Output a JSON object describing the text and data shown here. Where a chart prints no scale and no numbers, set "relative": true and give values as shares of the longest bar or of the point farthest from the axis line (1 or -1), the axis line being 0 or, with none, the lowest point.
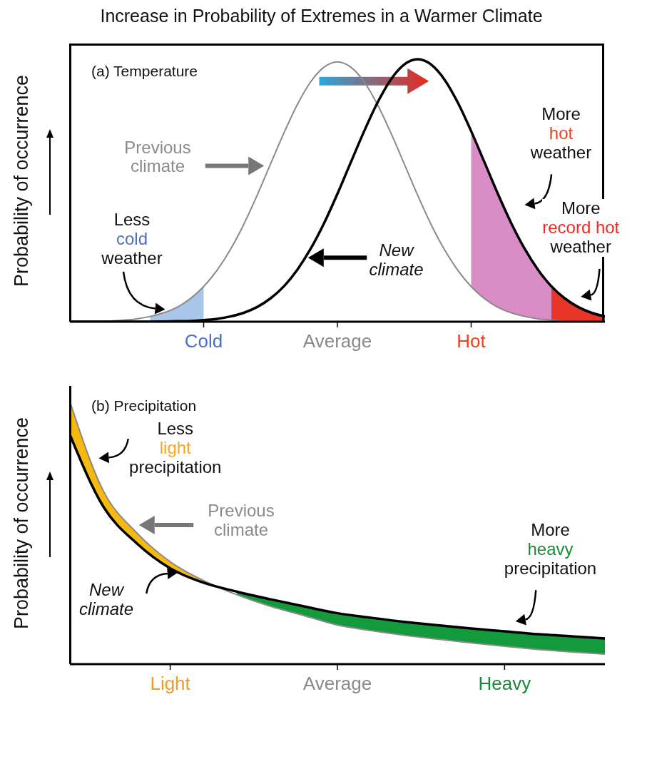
{
  "chart_data": [
    {
      "type": "line",
      "title": "Increase in Probability of Extremes in a Warmer Climate",
      "ylabel": "Probability of occurrence",
      "relative": true,
      "marker": "none",
      "line_style": "solid",
      "categories": [
        null,
        null,
        null,
        null,
        null,
        null,
        null,
        null,
        null,
        null,
        "Cold",
        null,
        null,
        null,
        null,
        null,
        null,
        null,
        null,
        null,
        "Average",
        null,
        null,
        null,
        null,
        null,
        null,
        null,
        null,
        null,
        "Hot",
        null,
        null,
        null,
        null,
        null,
        null,
        null,
        null,
        null,
        null
      ],
      "series": [
        {
          "type": "area",
          "color": "#a9c6e8",
          "values": [
            null,
            null,
            null,
            null,
            null,
            null,
            0.02,
            0.034,
            0.055,
            0.088,
            0.134,
            null,
            null,
            null,
            null,
            null,
            null,
            null,
            null,
            null,
            null,
            null,
            null,
            null,
            null,
            null,
            null,
            null,
            null,
            null,
            null,
            null,
            null,
            null,
            null,
            null,
            null,
            null,
            null,
            null,
            null
          ]
        },
        {
          "type": "area",
          "color": "#d98cc6",
          "values": [
            null,
            null,
            null,
            null,
            null,
            null,
            null,
            null,
            null,
            null,
            null,
            null,
            null,
            null,
            null,
            null,
            null,
            null,
            null,
            null,
            null,
            null,
            null,
            null,
            null,
            null,
            null,
            null,
            null,
            null,
            0.726,
            0.607,
            0.487,
            0.375,
            0.278,
            0.198,
            0.135,
            null,
            null,
            null,
            null
          ]
        },
        {
          "type": "area",
          "color": "#e8352a",
          "values": [
            null,
            null,
            null,
            null,
            null,
            null,
            null,
            null,
            null,
            null,
            null,
            null,
            null,
            null,
            null,
            null,
            null,
            null,
            null,
            null,
            null,
            null,
            null,
            null,
            null,
            null,
            null,
            null,
            null,
            null,
            null,
            null,
            null,
            null,
            null,
            null,
            0.135,
            0.089,
            0.056,
            0.034,
            0.02
          ]
        },
        {
          "name": "Previous climate",
          "color": "#8a8a8a",
          "values": [
            0,
            0.001,
            0.002,
            0.003,
            0.006,
            0.011,
            0.02,
            0.034,
            0.055,
            0.088,
            0.134,
            0.196,
            0.275,
            0.371,
            0.482,
            0.601,
            0.719,
            0.827,
            0.914,
            0.97,
            0.99,
            0.97,
            0.914,
            0.827,
            0.719,
            0.601,
            0.482,
            0.371,
            0.275,
            0.196,
            0.134,
            0.088,
            0.055,
            0.034,
            0.02,
            0.011,
            0.006,
            0.003,
            0.002,
            0.001,
            0
          ]
        },
        {
          "name": "New climate",
          "color": "#000000",
          "values": [
            0,
            0,
            0,
            0,
            0,
            0,
            0,
            0.001,
            0.002,
            0.003,
            0.006,
            0.011,
            0.02,
            0.034,
            0.056,
            0.089,
            0.135,
            0.198,
            0.278,
            0.375,
            0.487,
            0.607,
            0.726,
            0.835,
            0.923,
            0.98,
            1,
            0.98,
            0.923,
            0.835,
            0.726,
            0.607,
            0.487,
            0.375,
            0.278,
            0.198,
            0.135,
            0.089,
            0.056,
            0.034,
            0.02
          ]
        }
      ],
      "annotations": [
        "(a) Temperature",
        "Less cold weather",
        "More hot weather",
        "More record hot weather"
      ]
    },
    {
      "type": "line",
      "ylabel": "Probability of occurrence",
      "relative": true,
      "marker": "none",
      "line_style": "solid",
      "categories": [
        null,
        null,
        null,
        "Light",
        null,
        null,
        null,
        null,
        "Average",
        null,
        null,
        null,
        null,
        "Heavy",
        null,
        null,
        null
      ],
      "series": [
        {
          "type": "area",
          "color": "#f5b90f",
          "values": [
            1,
            0.66,
            0.5,
            0.39,
            0.318,
            null,
            null,
            null,
            null,
            null,
            null,
            null,
            null,
            null,
            null,
            null,
            null
          ]
        },
        {
          "type": "area",
          "color": "#139a3c",
          "values": [
            null,
            null,
            null,
            null,
            null,
            0.276,
            0.247,
            0.22,
            0.194,
            0.177,
            0.161,
            0.148,
            0.136,
            0.125,
            0.114,
            0.106,
            0.098
          ]
        },
        {
          "name": "Previous climate",
          "color": "#8a8a8a",
          "values": [
            1,
            0.66,
            0.5,
            0.39,
            0.318,
            0.264,
            0.22,
            0.185,
            0.149,
            0.128,
            0.11,
            0.095,
            0.081,
            0.068,
            0.056,
            0.046,
            0.038
          ]
        },
        {
          "name": "New climate",
          "color": "#000000",
          "values": [
            0.874,
            0.6,
            0.46,
            0.365,
            0.31,
            0.276,
            0.247,
            0.22,
            0.194,
            0.177,
            0.161,
            0.148,
            0.136,
            0.125,
            0.114,
            0.106,
            0.098
          ]
        }
      ],
      "annotations": [
        "(b) Precipitation",
        "Less light precipitation",
        "More heavy precipitation"
      ]
    }
  ]
}
